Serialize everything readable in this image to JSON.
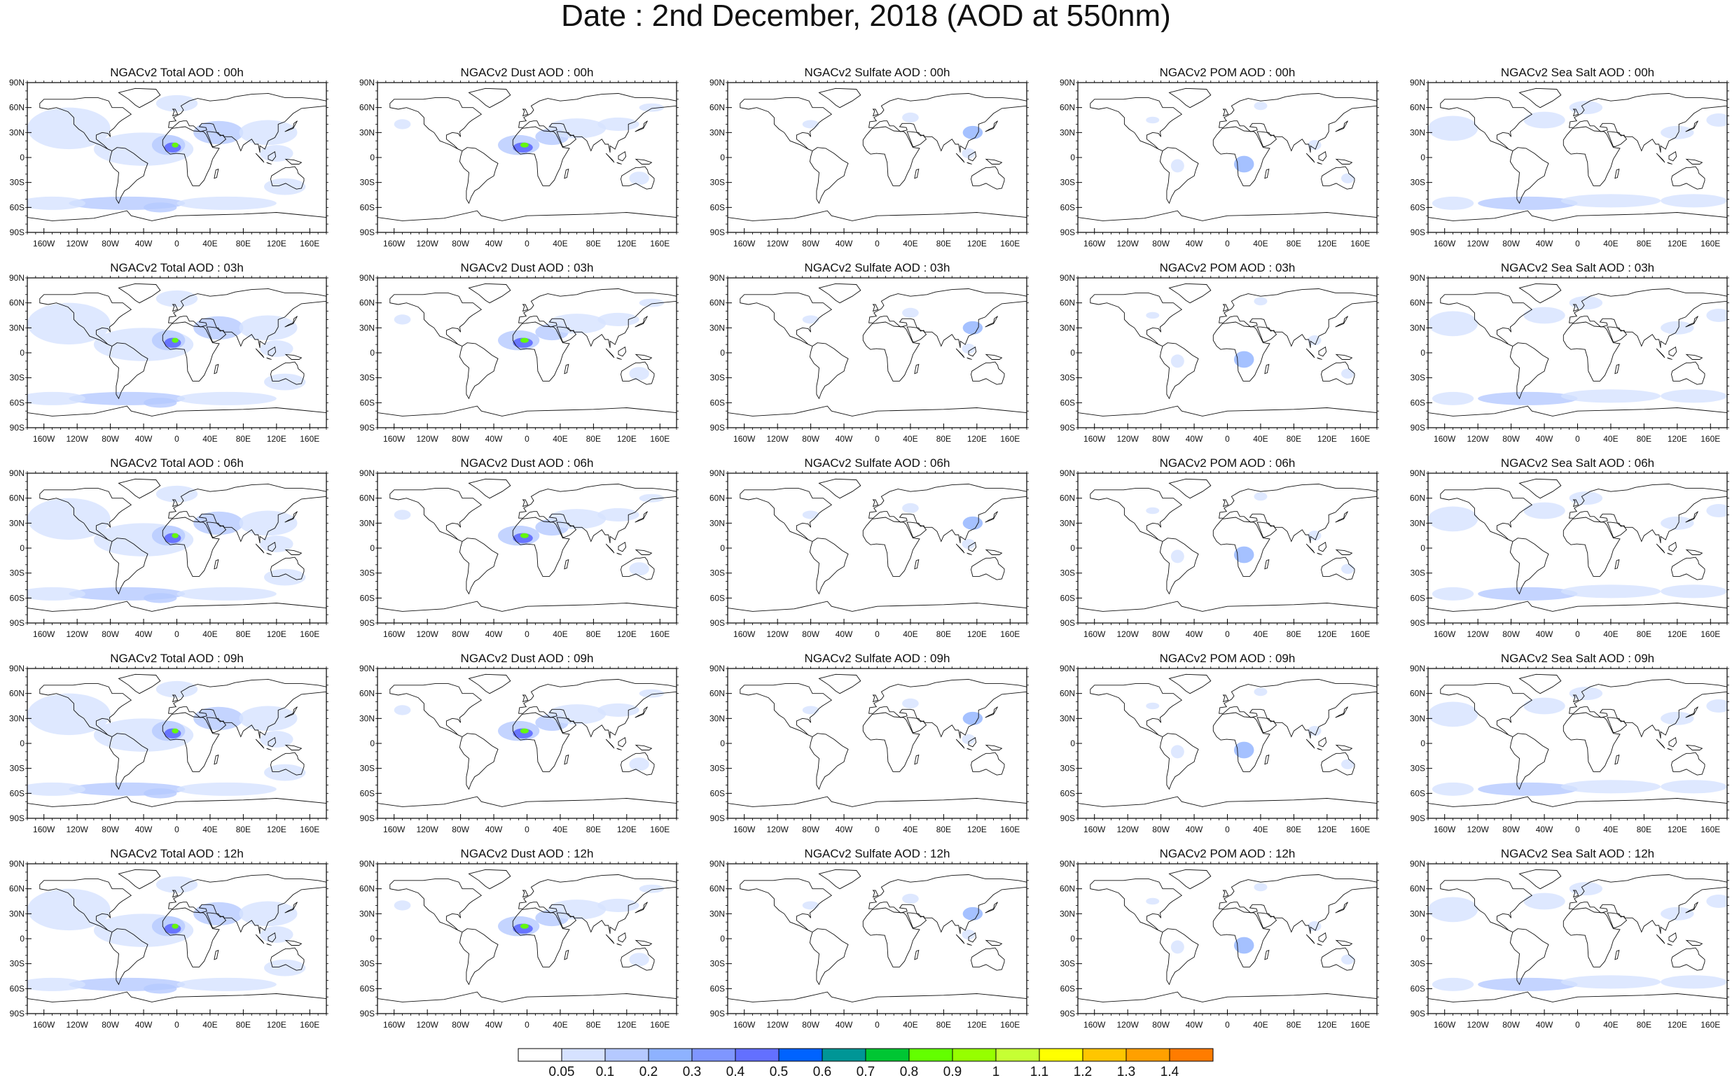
{
  "title": "Date : 2nd December, 2018 (AOD at 550nm)",
  "panel_titles": [
    [
      "NGACv2 Total AOD : 00h",
      "NGACv2 Dust AOD : 00h",
      "NGACv2 Sulfate AOD : 00h",
      "NGACv2 POM AOD : 00h",
      "NGACv2 Sea Salt AOD : 00h"
    ],
    [
      "NGACv2 Total AOD : 03h",
      "NGACv2 Dust AOD : 03h",
      "NGACv2 Sulfate AOD : 03h",
      "NGACv2 POM AOD : 03h",
      "NGACv2 Sea Salt AOD : 03h"
    ],
    [
      "NGACv2 Total AOD : 06h",
      "NGACv2 Dust AOD : 06h",
      "NGACv2 Sulfate AOD : 06h",
      "NGACv2 POM AOD : 06h",
      "NGACv2 Sea Salt AOD : 06h"
    ],
    [
      "NGACv2 Total AOD : 09h",
      "NGACv2 Dust AOD : 09h",
      "NGACv2 Sulfate AOD : 09h",
      "NGACv2 POM AOD : 09h",
      "NGACv2 Sea Salt  AOD : 09h"
    ],
    [
      "NGACv2 Total AOD : 12h",
      "NGACv2 Dust AOD : 12h",
      "NGACv2 Sulfate AOD : 12h",
      "NGACv2 POM  AOD : 12h",
      "NGACv2 Sea Salt  AOD : 12h"
    ]
  ],
  "lat_ticks": [
    "90N",
    "60N",
    "30N",
    "0",
    "30S",
    "60S",
    "90S"
  ],
  "lon_ticks": [
    "160W",
    "120W",
    "80W",
    "40W",
    "0",
    "40E",
    "80E",
    "120E",
    "160E"
  ],
  "colorbar": {
    "labels": [
      "0.05",
      "0.1",
      "0.2",
      "0.3",
      "0.4",
      "0.5",
      "0.6",
      "0.7",
      "0.8",
      "0.9",
      "1",
      "1.1",
      "1.2",
      "1.3",
      "1.4"
    ],
    "colors": [
      "#ffffff",
      "#d6e2ff",
      "#b5c9ff",
      "#8eb2ff",
      "#7f96ff",
      "#6370ff",
      "#0063ff",
      "#009696",
      "#00c633",
      "#63ff00",
      "#96ff00",
      "#c6ff33",
      "#ffff00",
      "#ffc600",
      "#ffa000",
      "#ff7c00",
      "#ff1900"
    ]
  },
  "species": [
    "total",
    "dust",
    "sulfate",
    "pom",
    "seasalt"
  ],
  "colors": {
    "land": "#ffffff",
    "coast": "#111111"
  }
}
